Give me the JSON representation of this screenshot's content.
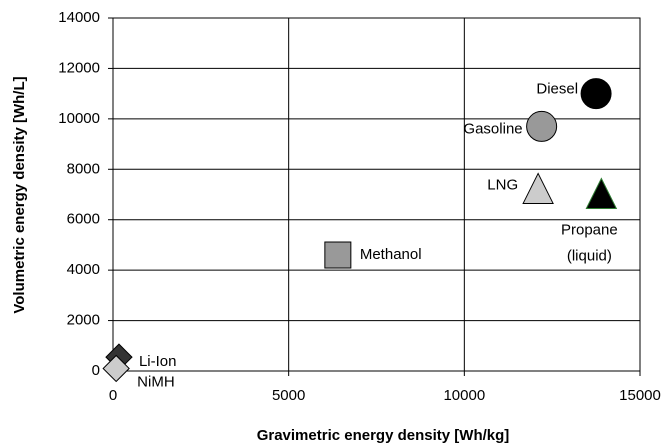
{
  "chart_data": {
    "type": "scatter",
    "x_label": "Gravimetric energy density [Wh/kg]",
    "y_label": "Volumetric energy density [Wh/L]",
    "xlim": [
      0,
      15000
    ],
    "xticks": [
      0,
      5000,
      10000,
      15000
    ],
    "ylim": [
      0,
      14000
    ],
    "yticks": [
      0,
      2000,
      4000,
      6000,
      8000,
      10000,
      12000,
      14000
    ],
    "grid": true,
    "series": [
      {
        "name": "Diesel",
        "marker": "circle",
        "color": "#000000",
        "x": 13750,
        "y": 11000
      },
      {
        "name": "Gasoline",
        "marker": "circle",
        "color": "#999999",
        "x": 12200,
        "y": 9700
      },
      {
        "name": "LNG",
        "marker": "triangle",
        "color": "#cccccc",
        "x": 12100,
        "y": 7200
      },
      {
        "name": "Propane (liquid)",
        "marker": "triangle",
        "color": "#000000",
        "edge": "#2e7d32",
        "x": 13900,
        "y": 7000
      },
      {
        "name": "Methanol",
        "marker": "square",
        "color": "#999999",
        "x": 6400,
        "y": 4600
      },
      {
        "name": "Li-Ion",
        "marker": "diamond",
        "color": "#333333",
        "x": 170,
        "y": 550
      },
      {
        "name": "NiMH",
        "marker": "diamond",
        "color": "#cccccc",
        "x": 90,
        "y": 100
      }
    ]
  }
}
